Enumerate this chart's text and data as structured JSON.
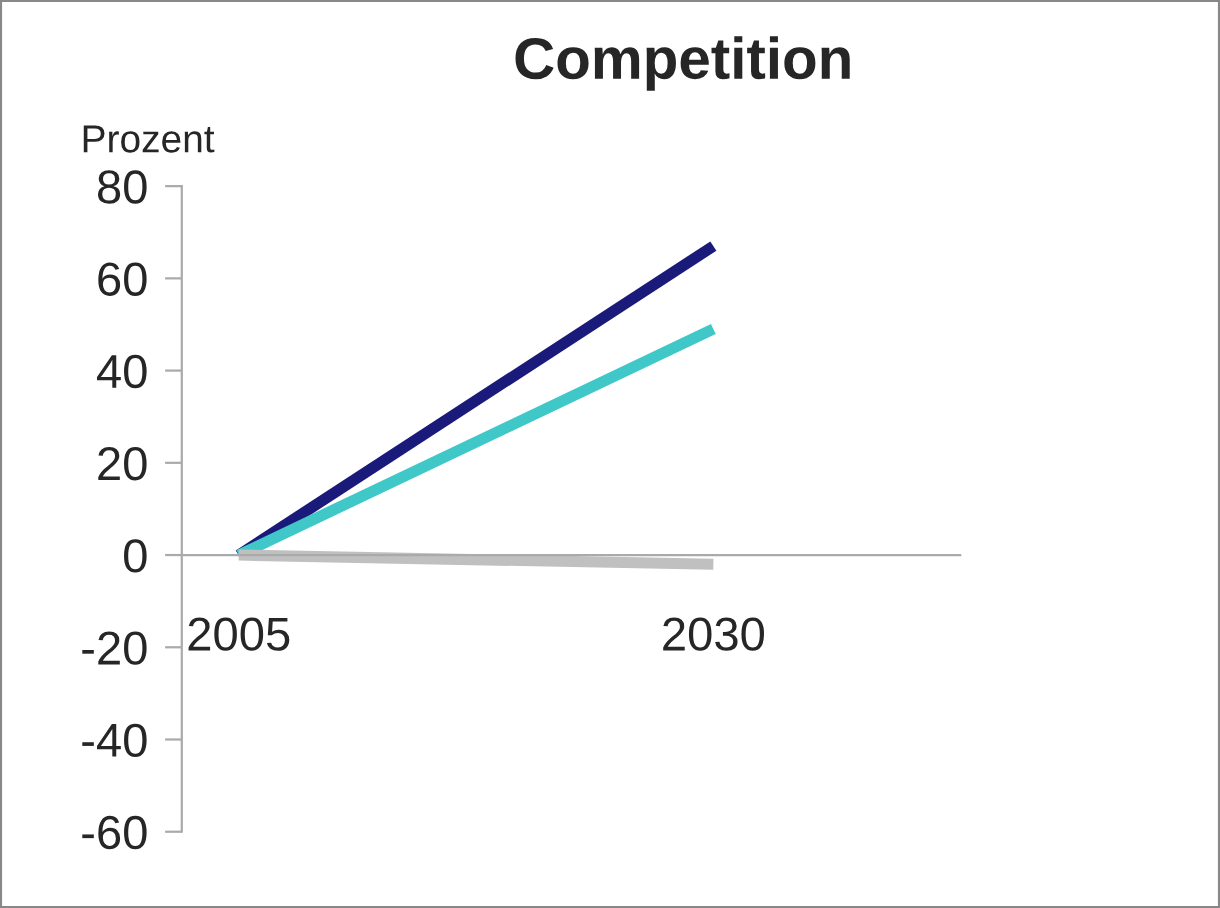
{
  "chart_data": {
    "type": "line",
    "title": "Competition",
    "ylabel": "Prozent",
    "x": [
      2005,
      2030
    ],
    "xlim": [
      2002,
      2043
    ],
    "xticks": [
      2005,
      2030
    ],
    "ylim": [
      -60,
      80
    ],
    "yticks": [
      -60,
      -40,
      -20,
      0,
      20,
      40,
      60,
      80
    ],
    "series": [
      {
        "color": "#1a1a7a",
        "values": [
          0,
          67
        ]
      },
      {
        "color": "#40c8c8",
        "values": [
          0,
          49
        ]
      },
      {
        "color": "#c0c0c0",
        "values": [
          0,
          -2
        ]
      }
    ],
    "grid": false,
    "legend": false,
    "marker": "none",
    "line_style": "solid"
  }
}
